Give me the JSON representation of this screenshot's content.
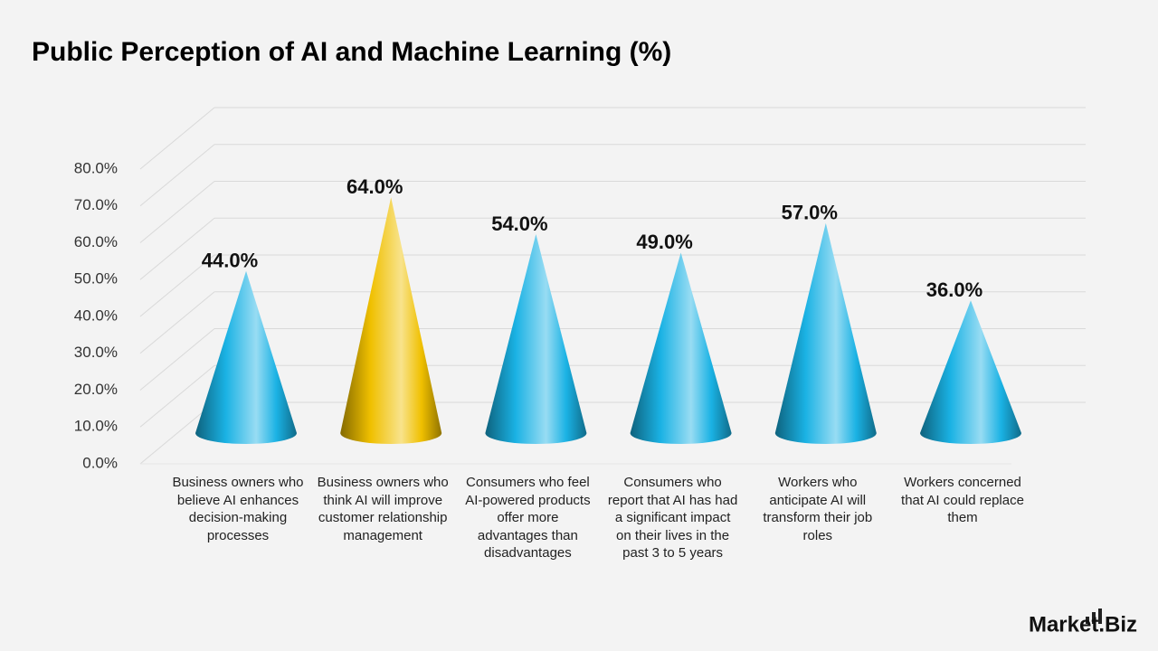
{
  "chart_data": {
    "type": "cone",
    "title": "Public Perception of AI and Machine Learning (%)",
    "categories": [
      "Business owners who believe AI enhances decision-making processes",
      "Business owners who think AI will improve customer relationship management",
      "Consumers who feel AI-powered products offer more advantages than disadvantages",
      "Consumers who report that AI has had a significant impact on their lives in the past 3 to 5 years",
      "Workers who anticipate AI will transform their job roles",
      "Workers concerned that AI could replace them"
    ],
    "values": [
      44,
      64,
      54,
      49,
      57,
      36
    ],
    "value_labels": [
      "44.0%",
      "64.0%",
      "54.0%",
      "49.0%",
      "57.0%",
      "36.0%"
    ],
    "colors": [
      "#1ab2e4",
      "#f0c000",
      "#1ab2e4",
      "#1ab2e4",
      "#1ab2e4",
      "#1ab2e4"
    ],
    "ylim": [
      0,
      80
    ],
    "yticks": [
      {
        "value": 0,
        "label": "0.0%"
      },
      {
        "value": 10,
        "label": "10.0%"
      },
      {
        "value": 20,
        "label": "20.0%"
      },
      {
        "value": 30,
        "label": "30.0%"
      },
      {
        "value": 40,
        "label": "40.0%"
      },
      {
        "value": 50,
        "label": "50.0%"
      },
      {
        "value": 60,
        "label": "60.0%"
      },
      {
        "value": 70,
        "label": "70.0%"
      },
      {
        "value": 80,
        "label": "80.0%"
      }
    ],
    "grid": true
  },
  "brand": "Market.Biz"
}
